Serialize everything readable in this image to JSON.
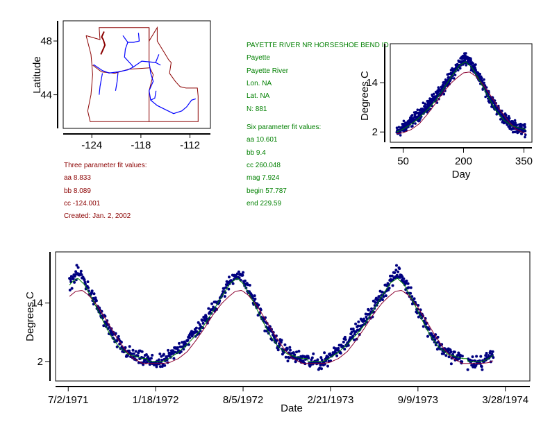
{
  "colors": {
    "map_border": "#8b0000",
    "river": "#0000ff",
    "points": "#000080",
    "fit_three": "#8b0030",
    "fit_six": "#008000",
    "station_text": "#008000",
    "three_text": "#8b0000",
    "axis": "#000000"
  },
  "station": {
    "name": "PAYETTE RIVER NR HORSESHOE BEND ID",
    "basin": "Payette",
    "river": "Payette River",
    "lon": "Lon. NA",
    "lat": "Lat. NA",
    "n": "N: 881"
  },
  "six_fit": {
    "title": "Six parameter fit values:",
    "aa": "aa 10.601",
    "bb": "bb 9.4",
    "cc": "cc 260.048",
    "mag": "mag 7.924",
    "begin": "begin 57.787",
    "end": "end 229.59"
  },
  "three_fit": {
    "title": "Three parameter fit values:",
    "aa": "aa 8.833",
    "bb": "bb 8.089",
    "cc": "cc -124.001",
    "created": "Created:   Jan. 2, 2002"
  },
  "chart_data": [
    {
      "id": "map",
      "type": "map",
      "ylabel": "Latitude",
      "xlim": [
        -127.5,
        -109.5
      ],
      "ylim": [
        41.5,
        49.5
      ],
      "x_ticks": [
        {
          "value": -124,
          "label": "-124"
        },
        {
          "value": -118,
          "label": "-118"
        },
        {
          "value": -112,
          "label": "-112"
        }
      ],
      "y_ticks": [
        {
          "value": 44,
          "label": "44"
        },
        {
          "value": 48,
          "label": "48"
        }
      ],
      "outline": [
        [
          -124.7,
          48.4
        ],
        [
          -123.0,
          48.1
        ],
        [
          -123.1,
          49.0
        ],
        [
          -117.0,
          49.0
        ],
        [
          -117.0,
          48.0
        ],
        [
          -116.0,
          49.0
        ],
        [
          -116.0,
          48.0
        ],
        [
          -114.9,
          46.9
        ],
        [
          -114.6,
          46.6
        ],
        [
          -114.3,
          46.4
        ],
        [
          -114.5,
          45.6
        ],
        [
          -113.8,
          45.0
        ],
        [
          -113.2,
          44.6
        ],
        [
          -112.5,
          44.5
        ],
        [
          -111.1,
          44.5
        ],
        [
          -111.0,
          43.9
        ],
        [
          -111.0,
          42.0
        ],
        [
          -117.0,
          42.0
        ],
        [
          -124.2,
          42.0
        ],
        [
          -124.5,
          42.8
        ],
        [
          -124.1,
          44.0
        ],
        [
          -123.9,
          45.5
        ],
        [
          -124.0,
          46.3
        ],
        [
          -124.1,
          47.0
        ],
        [
          -124.7,
          48.4
        ]
      ],
      "border_lines": [
        [
          [
            -117.0,
            49.0
          ],
          [
            -117.0,
            48.0
          ],
          [
            -117.0,
            46.4
          ],
          [
            -116.9,
            46.0
          ]
        ],
        [
          [
            -116.9,
            46.0
          ],
          [
            -116.5,
            45.5
          ],
          [
            -116.7,
            45.0
          ],
          [
            -117.0,
            44.3
          ],
          [
            -117.0,
            42.0
          ]
        ],
        [
          [
            -123.9,
            46.2
          ],
          [
            -122.8,
            45.7
          ],
          [
            -121.2,
            45.6
          ],
          [
            -119.5,
            45.9
          ],
          [
            -116.9,
            46.0
          ]
        ]
      ],
      "coast_detail": [
        [
          -122.9,
          47.0
        ],
        [
          -122.6,
          47.4
        ],
        [
          -122.4,
          47.7
        ],
        [
          -122.6,
          48.1
        ],
        [
          -122.8,
          48.3
        ],
        [
          -122.5,
          48.7
        ]
      ],
      "rivers": [
        [
          [
            -118.3,
            48.6
          ],
          [
            -118.2,
            48.0
          ],
          [
            -118.9,
            47.9
          ],
          [
            -119.6,
            47.9
          ],
          [
            -119.9,
            47.4
          ],
          [
            -120.0,
            46.8
          ],
          [
            -119.4,
            46.4
          ],
          [
            -119.1,
            46.2
          ],
          [
            -118.95,
            46.05
          ],
          [
            -119.6,
            45.85
          ],
          [
            -120.8,
            45.7
          ],
          [
            -121.9,
            45.62
          ],
          [
            -122.7,
            45.8
          ],
          [
            -123.2,
            46.0
          ],
          [
            -123.8,
            46.25
          ]
        ],
        [
          [
            -118.95,
            46.05
          ],
          [
            -117.9,
            46.5
          ],
          [
            -117.0,
            46.45
          ],
          [
            -116.2,
            46.4
          ],
          [
            -115.6,
            46.2
          ]
        ],
        [
          [
            -117.0,
            46.45
          ],
          [
            -116.8,
            45.6
          ],
          [
            -116.5,
            45.0
          ],
          [
            -117.0,
            44.3
          ],
          [
            -116.8,
            43.6
          ],
          [
            -116.0,
            43.2
          ],
          [
            -115.0,
            42.9
          ],
          [
            -114.0,
            42.6
          ],
          [
            -113.0,
            42.8
          ],
          [
            -112.4,
            43.1
          ],
          [
            -111.8,
            43.6
          ],
          [
            -111.3,
            43.7
          ]
        ],
        [
          [
            -116.8,
            43.6
          ],
          [
            -116.3,
            43.75
          ],
          [
            -116.15,
            44.3
          ]
        ],
        [
          [
            -123.1,
            44.0
          ],
          [
            -123.0,
            44.6
          ],
          [
            -122.8,
            45.3
          ],
          [
            -122.7,
            45.6
          ]
        ],
        [
          [
            -120.8,
            45.65
          ],
          [
            -120.9,
            45.0
          ],
          [
            -121.1,
            44.3
          ]
        ],
        [
          [
            -119.6,
            47.9
          ],
          [
            -120.2,
            48.4
          ]
        ],
        [
          [
            -116.2,
            46.4
          ],
          [
            -115.8,
            47.0
          ]
        ]
      ]
    },
    {
      "id": "seasonal",
      "type": "scatter",
      "xlabel": "Day",
      "ylabel": "Degrees C",
      "xlim": [
        18,
        370
      ],
      "ylim": [
        -0.5,
        23.5
      ],
      "x_ticks": [
        {
          "value": 50,
          "label": "50"
        },
        {
          "value": 200,
          "label": "200"
        },
        {
          "value": 350,
          "label": "350"
        }
      ],
      "y_ticks": [
        {
          "value": 2,
          "label": "2"
        },
        {
          "value": 14,
          "label": "14"
        }
      ],
      "x_range": [
        34,
        354
      ],
      "trend": [
        [
          34,
          1.8
        ],
        [
          50,
          3.0
        ],
        [
          70,
          4.6
        ],
        [
          90,
          6.3
        ],
        [
          110,
          8.2
        ],
        [
          130,
          10.2
        ],
        [
          150,
          13.0
        ],
        [
          170,
          15.8
        ],
        [
          190,
          18.6
        ],
        [
          205,
          20.2
        ],
        [
          215,
          19.4
        ],
        [
          230,
          16.8
        ],
        [
          250,
          13.2
        ],
        [
          270,
          9.6
        ],
        [
          290,
          6.6
        ],
        [
          310,
          4.4
        ],
        [
          330,
          3.2
        ],
        [
          354,
          2.4
        ]
      ],
      "fit_curve": [
        [
          34,
          1.6
        ],
        [
          50,
          1.8
        ],
        [
          70,
          2.6
        ],
        [
          90,
          4.0
        ],
        [
          110,
          6.3
        ],
        [
          130,
          8.9
        ],
        [
          150,
          11.7
        ],
        [
          170,
          14.0
        ],
        [
          185,
          15.3
        ],
        [
          200,
          16.4
        ],
        [
          215,
          16.6
        ],
        [
          230,
          15.6
        ],
        [
          250,
          13.4
        ],
        [
          270,
          10.5
        ],
        [
          290,
          7.5
        ],
        [
          310,
          4.8
        ],
        [
          330,
          2.7
        ],
        [
          354,
          1.6
        ]
      ],
      "fit_curve_six": [
        [
          34,
          2.0
        ],
        [
          50,
          2.7
        ],
        [
          70,
          3.9
        ],
        [
          90,
          5.5
        ],
        [
          110,
          7.4
        ],
        [
          130,
          9.6
        ],
        [
          150,
          12.5
        ],
        [
          170,
          15.5
        ],
        [
          190,
          18.2
        ],
        [
          205,
          19.1
        ],
        [
          220,
          17.8
        ],
        [
          240,
          14.5
        ],
        [
          260,
          10.8
        ],
        [
          280,
          7.3
        ],
        [
          300,
          4.9
        ],
        [
          320,
          3.5
        ],
        [
          354,
          2.6
        ]
      ]
    },
    {
      "id": "timeseries",
      "type": "scatter",
      "xlabel": "Date",
      "ylabel": "Degrees C",
      "xlim": [
        "1971-06-03",
        "1974-05-23"
      ],
      "ylim": [
        -2.0,
        24.5
      ],
      "x_ticks": [
        {
          "value": "1971-07-02",
          "label": "7/2/1971"
        },
        {
          "value": "1972-01-18",
          "label": "1/18/1972"
        },
        {
          "value": "1972-08-05",
          "label": "8/5/1972"
        },
        {
          "value": "1973-02-21",
          "label": "2/21/1973"
        },
        {
          "value": "1973-09-09",
          "label": "9/9/1973"
        },
        {
          "value": "1974-03-28",
          "label": "3/28/1974"
        }
      ],
      "y_ticks": [
        {
          "value": 2,
          "label": "2"
        },
        {
          "value": 14,
          "label": "14"
        }
      ],
      "segments": [
        {
          "start": "1971-07-05",
          "end": "1973-12-20"
        },
        {
          "start": "1974-01-01",
          "end": "1974-03-01"
        }
      ],
      "seasonal_peak_day": 205,
      "three_fit_label": "Three parameter fit",
      "six_fit_label": "Six parameter fit"
    }
  ]
}
